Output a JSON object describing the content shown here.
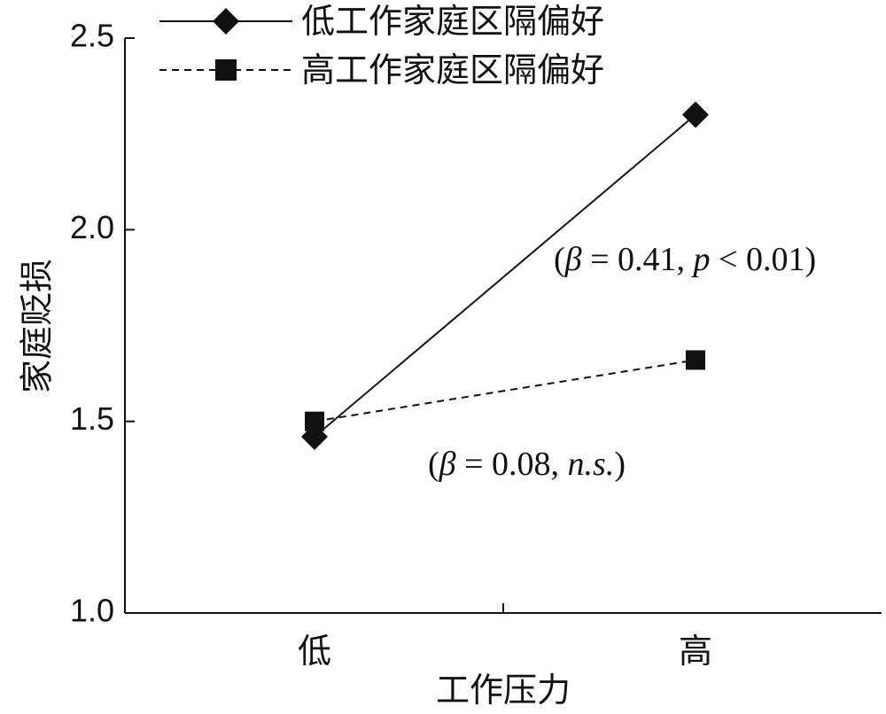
{
  "chart_data": {
    "type": "line",
    "categories": [
      "低",
      "高"
    ],
    "series": [
      {
        "name": "低工作家庭区隔偏好",
        "values": [
          1.46,
          2.3
        ],
        "line_style": "solid",
        "marker": "diamond",
        "color": "#111111"
      },
      {
        "name": "高工作家庭区隔偏好",
        "values": [
          1.5,
          1.66
        ],
        "line_style": "dashed",
        "marker": "square",
        "color": "#111111"
      }
    ],
    "xlabel": "工作压力",
    "ylabel": "家庭贬损",
    "ylim": [
      1.0,
      2.5
    ],
    "yticks": [
      "1.0",
      "1.5",
      "2.0",
      "2.5"
    ],
    "grid": false,
    "legend_position": "top",
    "annotations": [
      {
        "series": 0,
        "text_prefix": "(",
        "beta_symbol": "β",
        "text_mid": " = 0.41, ",
        "stat_symbol": "p",
        "text_suffix": " < 0.01)"
      },
      {
        "series": 1,
        "text_prefix": "(",
        "beta_symbol": "β",
        "text_mid": " = 0.08, ",
        "stat_symbol": "n.s.",
        "text_suffix": ")"
      }
    ]
  }
}
